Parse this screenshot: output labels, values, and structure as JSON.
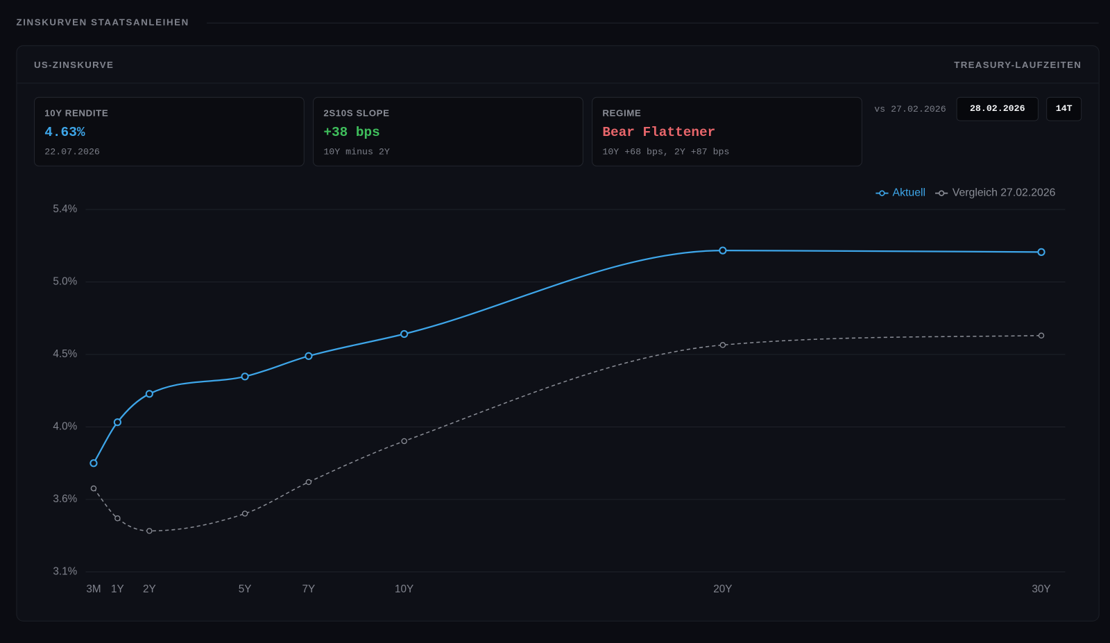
{
  "header": {
    "title": "ZINSKURVEN STAATSANLEIHEN"
  },
  "panel": {
    "title": "US-ZINSKURVE",
    "subtitle": "TREASURY-LAUFZEITEN"
  },
  "cards": [
    {
      "label": "10Y RENDITE",
      "value": "4.63%",
      "note": "22.07.2026"
    },
    {
      "label": "2S10S SLOPE",
      "value": "+38 bps",
      "note": "10Y minus 2Y"
    },
    {
      "label": "REGIME",
      "value": "Bear Flattener",
      "note": "10Y +68 bps, 2Y +87 bps"
    }
  ],
  "controls": {
    "compare": "vs 27.02.2026",
    "date": "28.02.2026",
    "range": "14T"
  },
  "chart_data": {
    "type": "line",
    "x": [
      0.25,
      1,
      2,
      5,
      7,
      10,
      20,
      30
    ],
    "xlim": [
      0,
      30.75
    ],
    "xticks": [
      {
        "value": 0.25,
        "label": "3M"
      },
      {
        "value": 1,
        "label": "1Y"
      },
      {
        "value": 2,
        "label": "2Y"
      },
      {
        "value": 5,
        "label": "5Y"
      },
      {
        "value": 7,
        "label": "7Y"
      },
      {
        "value": 10,
        "label": "10Y"
      },
      {
        "value": 20,
        "label": "20Y"
      },
      {
        "value": 30,
        "label": "30Y"
      }
    ],
    "ylim": [
      3.12,
      5.42
    ],
    "yticks": [
      {
        "value": 3.12,
        "label": "3.1%"
      },
      {
        "value": 3.58,
        "label": "3.6%"
      },
      {
        "value": 4.04,
        "label": "4.0%"
      },
      {
        "value": 4.5,
        "label": "4.5%"
      },
      {
        "value": 4.96,
        "label": "5.0%"
      },
      {
        "value": 5.42,
        "label": "5.4%"
      }
    ],
    "grid": true,
    "legend": "top-right",
    "series": [
      {
        "name": "Aktuell",
        "color": "#3ea6e9",
        "dashed": false,
        "values": [
          3.81,
          4.07,
          4.25,
          4.36,
          4.49,
          4.63,
          5.16,
          5.15
        ]
      },
      {
        "name": "Vergleich 27.02.2026",
        "color": "#8a8d96",
        "dashed": true,
        "values": [
          3.65,
          3.46,
          3.38,
          3.49,
          3.69,
          3.95,
          4.56,
          4.62
        ]
      }
    ]
  }
}
